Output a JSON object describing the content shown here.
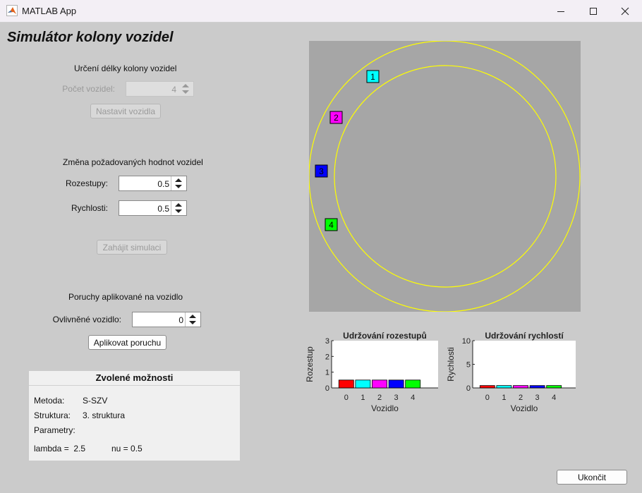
{
  "window": {
    "title": "MATLAB App"
  },
  "app_title": "Simulátor kolony vozidel",
  "length_section": {
    "heading": "Určení délky kolony vozidel",
    "count_label": "Počet vozidel:",
    "count_value": "4",
    "set_button": "Nastavit vozidla"
  },
  "targets_section": {
    "heading": "Změna požadovaných hodnot vozidel",
    "spacing_label": "Rozestupy:",
    "spacing_value": "0.5",
    "speed_label": "Rychlosti:",
    "speed_value": "0.5",
    "start_button": "Zahájit simulaci"
  },
  "fault_section": {
    "heading": "Poruchy aplikované na vozidlo",
    "vehicle_label": "Ovlivněné vozidlo:",
    "vehicle_value": "0",
    "apply_button": "Aplikovat poruchu"
  },
  "options_panel": {
    "title": "Zvolené možnosti",
    "method_label": "Metoda:",
    "method_value": "S-SZV",
    "structure_label": "Struktura:",
    "structure_value": "3. struktura",
    "params_label": "Parametry:",
    "lambda_text": "lambda =  2.5",
    "nu_text": "nu = 0.5"
  },
  "simulation": {
    "track_color": "#ffff00",
    "background": "#a6a6a6",
    "vehicles": [
      {
        "label": "1",
        "color": "#00ffff"
      },
      {
        "label": "2",
        "color": "#ff00ff"
      },
      {
        "label": "3",
        "color": "#0000ff"
      },
      {
        "label": "4",
        "color": "#00ff00"
      }
    ]
  },
  "chart_data": [
    {
      "type": "bar",
      "title": "Udržování rozestupů",
      "xlabel": "Vozidlo",
      "ylabel": "Rozestup",
      "categories": [
        "0",
        "1",
        "2",
        "3",
        "4"
      ],
      "values": [
        0.5,
        0.5,
        0.5,
        0.5,
        0.5
      ],
      "colors": [
        "#ff0000",
        "#00ffff",
        "#ff00ff",
        "#0000ff",
        "#00ff00"
      ],
      "ylim": [
        0,
        3
      ],
      "yticks": [
        "0",
        "1",
        "2",
        "3"
      ]
    },
    {
      "type": "bar",
      "title": "Udržování rychlostí",
      "xlabel": "Vozidlo",
      "ylabel": "Rychlosti",
      "categories": [
        "0",
        "1",
        "2",
        "3",
        "4"
      ],
      "values": [
        0.5,
        0.5,
        0.5,
        0.5,
        0.5
      ],
      "colors": [
        "#ff0000",
        "#00ffff",
        "#ff00ff",
        "#0000ff",
        "#00ff00"
      ],
      "ylim": [
        0,
        10
      ],
      "yticks": [
        "0",
        "5",
        "10"
      ]
    }
  ],
  "footer": {
    "quit_button": "Ukončit"
  }
}
